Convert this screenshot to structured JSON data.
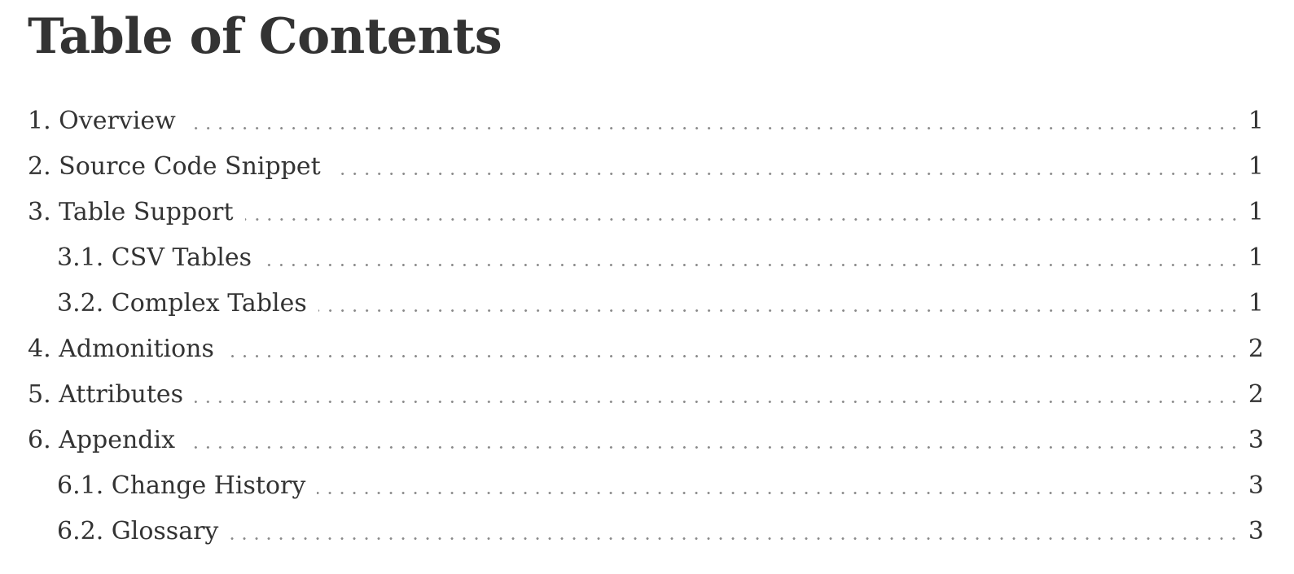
{
  "toc": {
    "title": "Table of Contents",
    "entries": [
      {
        "label": "1. Overview",
        "page": "1",
        "level": 1
      },
      {
        "label": "2. Source Code Snippet",
        "page": "1",
        "level": 1
      },
      {
        "label": "3. Table Support",
        "page": "1",
        "level": 1
      },
      {
        "label": "3.1. CSV Tables",
        "page": "1",
        "level": 2
      },
      {
        "label": "3.2. Complex Tables",
        "page": "1",
        "level": 2
      },
      {
        "label": "4. Admonitions",
        "page": "2",
        "level": 1
      },
      {
        "label": "5. Attributes",
        "page": "2",
        "level": 1
      },
      {
        "label": "6. Appendix",
        "page": "3",
        "level": 1
      },
      {
        "label": "6.1. Change History",
        "page": "3",
        "level": 2
      },
      {
        "label": "6.2. Glossary",
        "page": "3",
        "level": 2
      }
    ]
  }
}
